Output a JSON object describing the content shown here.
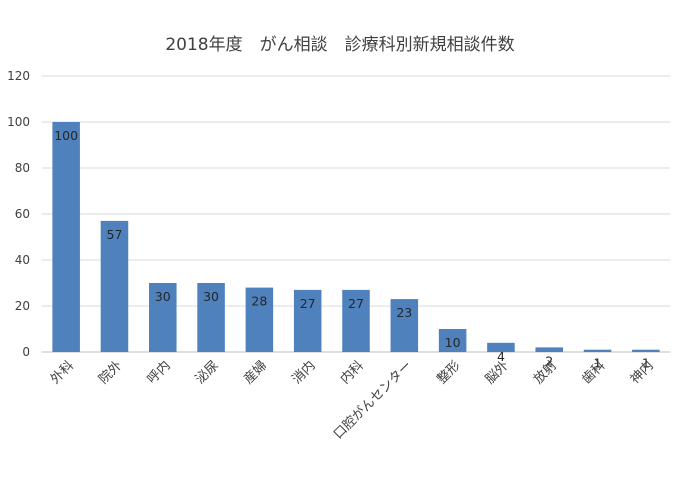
{
  "chart_data": {
    "type": "bar",
    "title": "2018年度　がん相談　診療科別新規相談件数",
    "categories": [
      "外科",
      "院外",
      "呼内",
      "泌尿",
      "産婦",
      "消内",
      "内科",
      "口腔がんセンター",
      "整形",
      "脳外",
      "放射",
      "歯科",
      "神内"
    ],
    "values": [
      100,
      57,
      30,
      30,
      28,
      27,
      27,
      23,
      10,
      4,
      2,
      1,
      1
    ],
    "xlabel": "",
    "ylabel": "",
    "ylim": [
      0,
      120
    ],
    "yticks": [
      0,
      20,
      40,
      60,
      80,
      100,
      120
    ],
    "grid": true,
    "legend": "none",
    "data_labels": true,
    "bar_color": "#4f81bd"
  }
}
